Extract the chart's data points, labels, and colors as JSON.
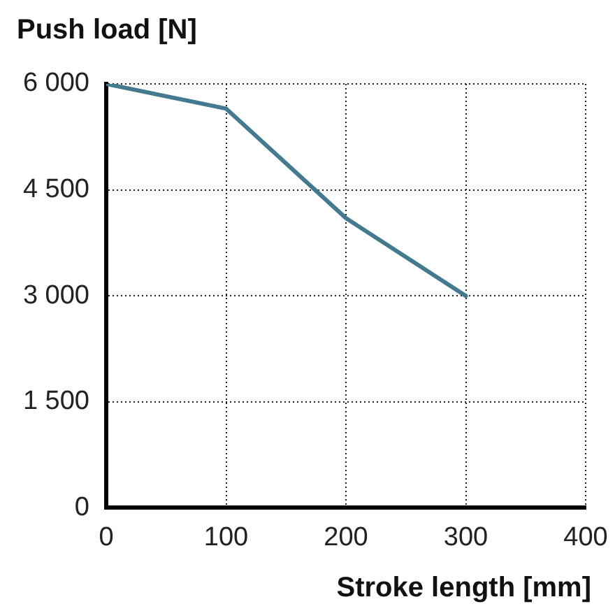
{
  "chart_data": {
    "type": "line",
    "xlabel": "Stroke length [mm]",
    "ylabel": "Push load [N]",
    "x": [
      0,
      100,
      200,
      300
    ],
    "series": [
      {
        "color": "#447a90",
        "values": [
          6000,
          5650,
          4100,
          3000
        ]
      }
    ],
    "xlim": [
      0,
      400
    ],
    "xticks": [
      0,
      100,
      200,
      300,
      400
    ],
    "ylim": [
      0,
      6000
    ],
    "yticks": [
      {
        "value": 0,
        "label": "0"
      },
      {
        "value": 1500,
        "label": "1 500"
      },
      {
        "value": 3000,
        "label": "3 000"
      },
      {
        "value": 4500,
        "label": "4 500"
      },
      {
        "value": 6000,
        "label": "6 000"
      }
    ],
    "grid": true,
    "marker": "none",
    "line_style": "solid"
  }
}
